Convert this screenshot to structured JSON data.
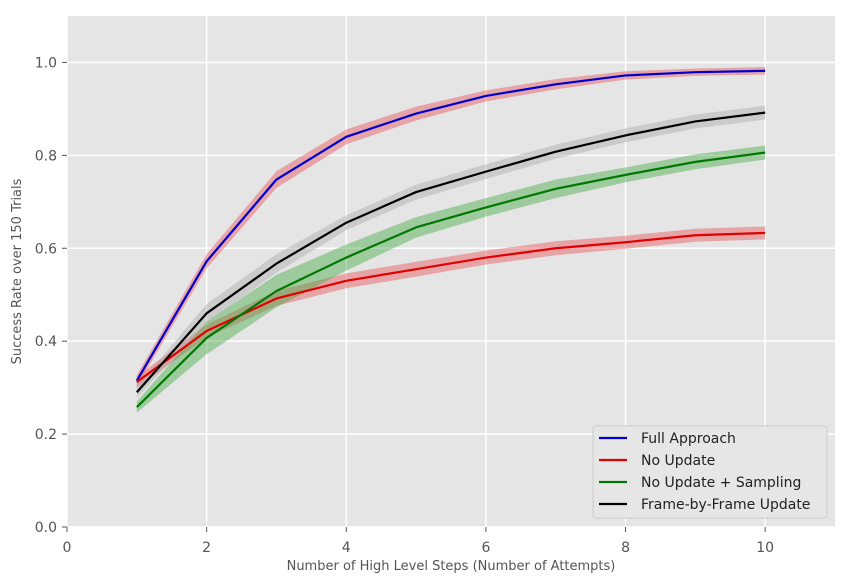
{
  "chart_data": {
    "type": "line",
    "title": "",
    "xlabel": "Number of High Level Steps (Number of Attempts)",
    "ylabel": "Success Rate over 150 Trials",
    "xlim": [
      0,
      11
    ],
    "ylim": [
      0,
      1.1
    ],
    "xticks": [
      0,
      2,
      4,
      6,
      8,
      10
    ],
    "yticks": [
      0.0,
      0.2,
      0.4,
      0.6,
      0.8,
      1.0
    ],
    "xtick_labels": [
      "0",
      "2",
      "4",
      "6",
      "8",
      "10"
    ],
    "ytick_labels": [
      "0.0",
      "0.2",
      "0.4",
      "0.6",
      "0.8",
      "1.0"
    ],
    "grid": true,
    "legend_position": "bottom-right",
    "x": [
      1,
      2,
      3,
      4,
      5,
      6,
      7,
      8,
      9,
      10
    ],
    "series": [
      {
        "name": "Full Approach",
        "color": "#0000cc",
        "band_color": "#e8555a",
        "values": [
          0.315,
          0.572,
          0.748,
          0.84,
          0.89,
          0.928,
          0.953,
          0.972,
          0.979,
          0.982
        ],
        "band_halfwidth": [
          0.012,
          0.015,
          0.018,
          0.016,
          0.015,
          0.012,
          0.011,
          0.009,
          0.008,
          0.008
        ]
      },
      {
        "name": "No Update",
        "color": "#e00000",
        "band_color": "#e8555a",
        "values": [
          0.312,
          0.422,
          0.492,
          0.53,
          0.555,
          0.58,
          0.6,
          0.613,
          0.628,
          0.633
        ],
        "band_halfwidth": [
          0.012,
          0.014,
          0.016,
          0.016,
          0.016,
          0.015,
          0.015,
          0.014,
          0.014,
          0.014
        ]
      },
      {
        "name": "No Update + Sampling",
        "color": "#007700",
        "band_color": "#44aa44",
        "values": [
          0.258,
          0.407,
          0.508,
          0.58,
          0.645,
          0.688,
          0.728,
          0.758,
          0.786,
          0.806
        ],
        "band_halfwidth": [
          0.012,
          0.035,
          0.035,
          0.028,
          0.022,
          0.02,
          0.02,
          0.016,
          0.016,
          0.015
        ]
      },
      {
        "name": "Frame-by-Frame Update",
        "color": "#000000",
        "band_color": "#aaaaaa",
        "values": [
          0.29,
          0.46,
          0.567,
          0.655,
          0.721,
          0.765,
          0.808,
          0.843,
          0.873,
          0.892
        ],
        "band_halfwidth": [
          0.012,
          0.02,
          0.02,
          0.016,
          0.016,
          0.016,
          0.015,
          0.015,
          0.015,
          0.015
        ]
      }
    ]
  }
}
